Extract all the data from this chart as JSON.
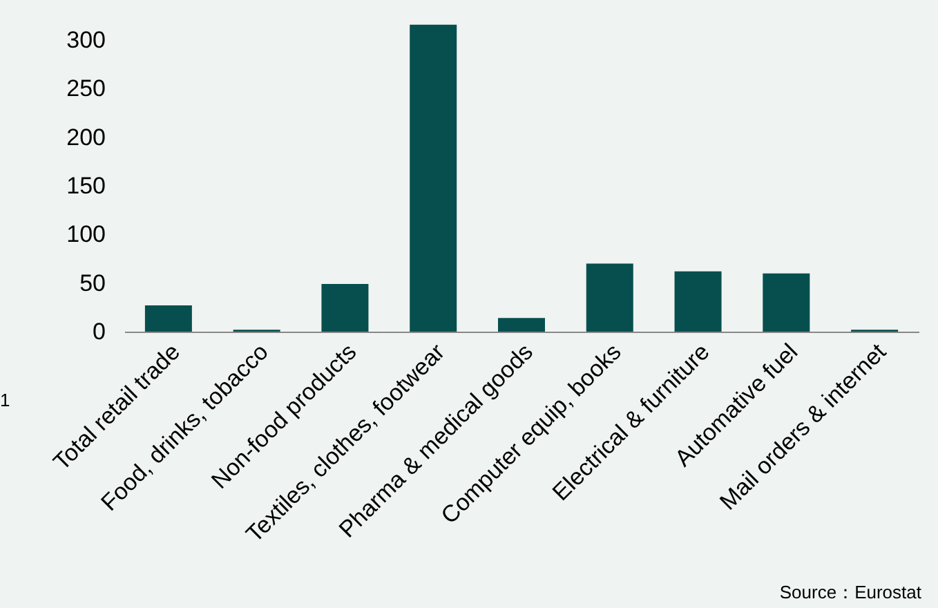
{
  "chart_data": {
    "type": "bar",
    "categories": [
      "Total retail trade",
      "Food, drinks, tobacco",
      "Non-food products",
      "Textiles, clothes, footwear",
      "Pharma & medical goods",
      "Computer equip, books",
      "Electrical & furniture",
      "Automative fuel",
      "Mail orders & internet"
    ],
    "values": [
      27,
      2,
      49,
      316,
      14,
      70,
      62,
      60,
      2
    ],
    "color": "#074f4f",
    "ylim": [
      0,
      320
    ],
    "yticks": [
      0,
      50,
      100,
      150,
      200,
      250,
      300
    ],
    "grid": false,
    "annotations": [
      "1",
      "Source：Eurostat"
    ]
  }
}
